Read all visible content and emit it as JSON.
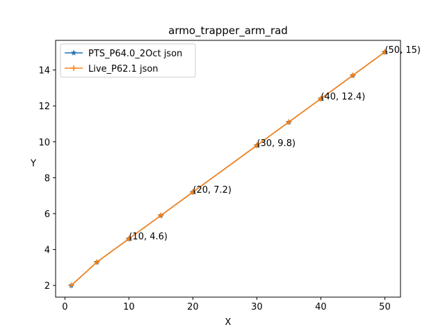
{
  "chart_data": {
    "type": "line",
    "title": "armo_trapper_arm_rad",
    "xlabel": "X",
    "ylabel": "Y",
    "xlim": [
      -1.45,
      52.45
    ],
    "ylim": [
      1.35,
      15.65
    ],
    "xticks": [
      0,
      10,
      20,
      30,
      40,
      50
    ],
    "yticks": [
      2,
      4,
      6,
      8,
      10,
      12,
      14
    ],
    "grid": false,
    "legend_position": "upper-left",
    "x": [
      1,
      5,
      10,
      15,
      20,
      30,
      35,
      40,
      45,
      50
    ],
    "series": [
      {
        "name": "PTS_P64.0_2Oct json",
        "color": "#1f77b4",
        "marker": "star",
        "values": [
          2.0,
          3.3,
          4.6,
          5.9,
          7.2,
          9.8,
          11.1,
          12.4,
          13.7,
          15.0
        ]
      },
      {
        "name": "Live_P62.1 json",
        "color": "#ff7f0e",
        "marker": "plus",
        "values": [
          2.0,
          3.3,
          4.6,
          5.9,
          7.2,
          9.8,
          11.1,
          12.4,
          13.7,
          15.0
        ]
      }
    ],
    "annotations": [
      {
        "x": 10,
        "y": 4.6,
        "text": "(10, 4.6)"
      },
      {
        "x": 20,
        "y": 7.2,
        "text": "(20, 7.2)"
      },
      {
        "x": 30,
        "y": 9.8,
        "text": "(30, 9.8)"
      },
      {
        "x": 40,
        "y": 12.4,
        "text": "(40, 12.4)"
      },
      {
        "x": 50,
        "y": 15,
        "text": "(50, 15)"
      }
    ]
  }
}
